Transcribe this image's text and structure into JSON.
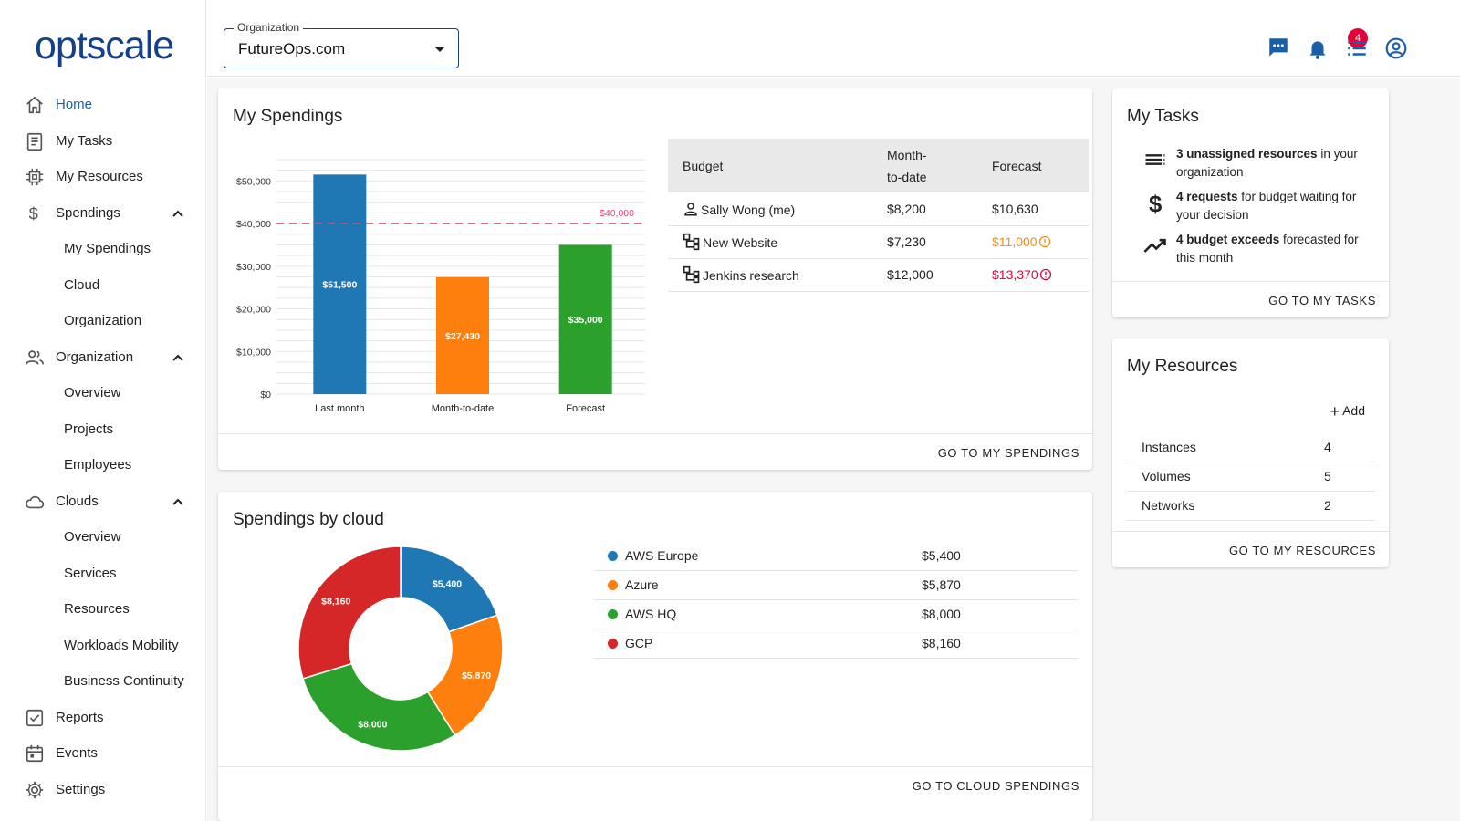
{
  "app": {
    "logo": "optscale"
  },
  "sidebar": {
    "items": [
      {
        "label": "Home",
        "icon": "home-icon",
        "active": true
      },
      {
        "label": "My Tasks",
        "icon": "clipboard-icon"
      },
      {
        "label": "My Resources",
        "icon": "chip-icon"
      },
      {
        "label": "Spendings",
        "icon": "dollar-icon",
        "expanded": true
      },
      {
        "label": "My Spendings",
        "sub": true
      },
      {
        "label": "Cloud",
        "sub": true
      },
      {
        "label": "Organization",
        "sub": true
      },
      {
        "label": "Organization",
        "icon": "people-icon",
        "expanded": true
      },
      {
        "label": "Overview",
        "sub": true
      },
      {
        "label": "Projects",
        "sub": true
      },
      {
        "label": "Employees",
        "sub": true
      },
      {
        "label": "Clouds",
        "icon": "cloud-icon",
        "expanded": true
      },
      {
        "label": "Overview",
        "sub": true
      },
      {
        "label": "Services",
        "sub": true
      },
      {
        "label": "Resources",
        "sub": true
      },
      {
        "label": "Workloads Mobility",
        "sub": true
      },
      {
        "label": "Business Continuity",
        "sub": true
      },
      {
        "label": "Reports",
        "icon": "checkbox-icon"
      },
      {
        "label": "Events",
        "icon": "calendar-icon"
      },
      {
        "label": "Settings",
        "icon": "gear-icon"
      }
    ]
  },
  "header": {
    "org_label": "Organization",
    "org_value": "FutureOps.com",
    "notification_count": "4",
    "accent": "#1b5ea8"
  },
  "spendings": {
    "title": "My Spendings",
    "footer": "GO TO MY SPENDINGS",
    "table": {
      "headers": [
        "Budget",
        "Month-to-date",
        "Forecast"
      ],
      "rows": [
        {
          "name": "Sally Wong (me)",
          "icon": "person-icon",
          "mtd": "$8,200",
          "forecast": "$10,630",
          "status": "normal"
        },
        {
          "name": "New Website",
          "icon": "hierarchy-icon",
          "mtd": "$7,230",
          "forecast": "$11,000",
          "status": "warn"
        },
        {
          "name": "Jenkins research",
          "icon": "hierarchy-icon",
          "mtd": "$12,000",
          "forecast": "$13,370",
          "status": "danger"
        }
      ]
    }
  },
  "chart_data": [
    {
      "type": "bar",
      "categories": [
        "Last month",
        "Month-to-date",
        "Forecast"
      ],
      "values": [
        51500,
        27430,
        35000
      ],
      "value_labels": [
        "$51,500",
        "$27,430",
        "$35,000"
      ],
      "colors": [
        "#1f77b4",
        "#ff7f0e",
        "#2ca02c"
      ],
      "ylim": [
        0,
        55000
      ],
      "yticks": [
        0,
        10000,
        20000,
        30000,
        40000,
        50000
      ],
      "ytick_labels": [
        "$0",
        "$10,000",
        "$20,000",
        "$30,000",
        "$40,000",
        "$50,000"
      ],
      "threshold": {
        "value": 40000,
        "label": "$40,000",
        "color": "#e4457a"
      },
      "grid": true
    },
    {
      "type": "pie",
      "donut": true,
      "categories": [
        "AWS Europe",
        "Azure",
        "AWS HQ",
        "GCP"
      ],
      "values": [
        5400,
        5870,
        8000,
        8160
      ],
      "value_labels": [
        "$5,400",
        "$5,870",
        "$8,000",
        "$8,160"
      ],
      "colors": [
        "#1f77b4",
        "#ff7f0e",
        "#2ca02c",
        "#d62728"
      ]
    }
  ],
  "cloud": {
    "title": "Spendings by cloud",
    "footer": "GO TO CLOUD SPENDINGS",
    "legend": [
      {
        "name": "AWS Europe",
        "value": "$5,400",
        "color": "#1f77b4"
      },
      {
        "name": "Azure",
        "value": "$5,870",
        "color": "#ff7f0e"
      },
      {
        "name": "AWS HQ",
        "value": "$8,000",
        "color": "#2ca02c"
      },
      {
        "name": "GCP",
        "value": "$8,160",
        "color": "#d62728"
      }
    ]
  },
  "tasks": {
    "title": "My Tasks",
    "footer": "GO TO MY TASKS",
    "items": [
      {
        "bold": "3 unassigned resources",
        "rest": " in your organization",
        "icon": "list-icon"
      },
      {
        "bold": "4 requests",
        "rest": " for budget waiting for your decision",
        "icon": "dollar-icon"
      },
      {
        "bold": "4 budget exceeds",
        "rest": " forecasted for this month",
        "icon": "trending-up-icon"
      }
    ]
  },
  "resources": {
    "title": "My Resources",
    "add_label": "Add",
    "footer": "GO TO MY RESOURCES",
    "rows": [
      {
        "name": "Instances",
        "count": "4"
      },
      {
        "name": "Volumes",
        "count": "5"
      },
      {
        "name": "Networks",
        "count": "2"
      }
    ]
  }
}
